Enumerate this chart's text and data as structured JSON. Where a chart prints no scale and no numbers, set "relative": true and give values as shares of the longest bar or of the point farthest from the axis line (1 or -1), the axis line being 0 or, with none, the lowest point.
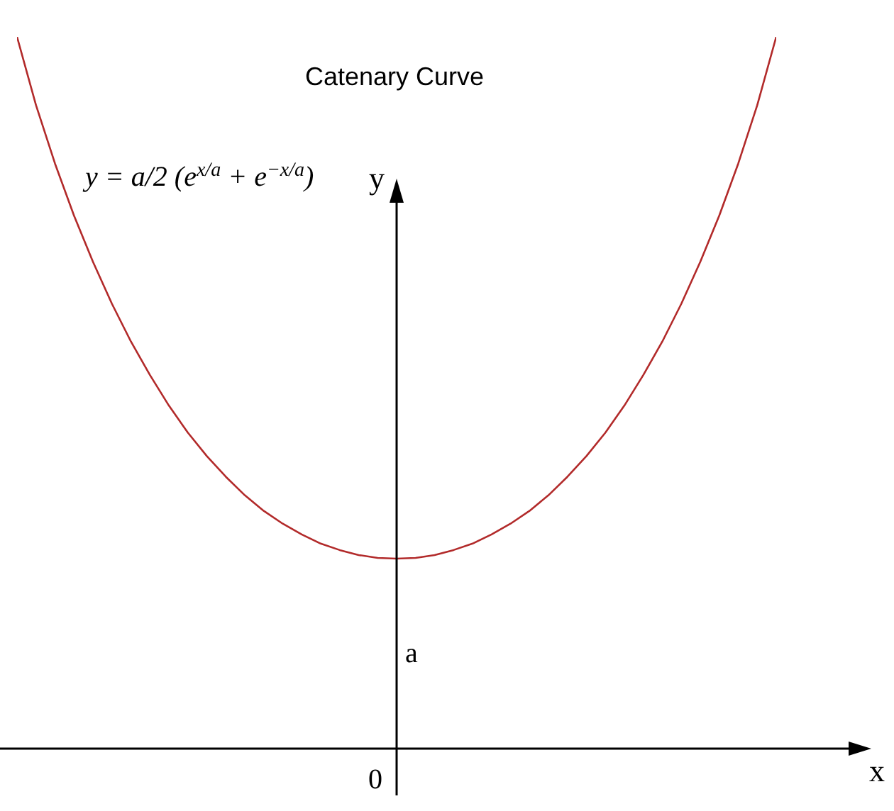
{
  "chart_data": {
    "type": "line",
    "title": "Catenary Curve",
    "xlabel": "x",
    "ylabel": "y",
    "relative": true,
    "marker": "none",
    "line_style": "solid",
    "categories": [
      null,
      null,
      null,
      null,
      null,
      null,
      null,
      null,
      null,
      null,
      null,
      null,
      null,
      null,
      null,
      null,
      null,
      null,
      null,
      null,
      null,
      null,
      null,
      null,
      null,
      null,
      null,
      null,
      null,
      null,
      null,
      null,
      null,
      null,
      null,
      null,
      null,
      null,
      null,
      null,
      null
    ],
    "series": [
      {
        "color": "#b22a2a",
        "values": [
          1.0,
          0.904,
          0.822,
          0.749,
          0.684,
          0.625,
          0.572,
          0.525,
          0.482,
          0.444,
          0.411,
          0.382,
          0.356,
          0.334,
          0.316,
          0.301,
          0.288,
          0.279,
          0.272,
          0.268,
          0.267,
          0.268,
          0.272,
          0.279,
          0.288,
          0.301,
          0.316,
          0.334,
          0.356,
          0.382,
          0.411,
          0.444,
          0.482,
          0.525,
          0.572,
          0.625,
          0.684,
          0.749,
          0.822,
          0.904,
          1.0
        ]
      }
    ],
    "annotations": [
      "y = a/2 (e$^{x/a}$ + e$^{−x/a}$)",
      "a",
      "0"
    ]
  }
}
